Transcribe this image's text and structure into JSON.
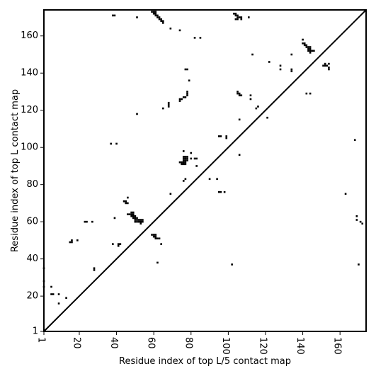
{
  "chart_data": {
    "type": "scatter",
    "xlabel": "Residue index of top L/5 contact map",
    "ylabel": "Residue index of top L contact map",
    "xlim": [
      1,
      174
    ],
    "ylim": [
      1,
      174
    ],
    "x_ticks": [
      1,
      20,
      40,
      60,
      80,
      100,
      120,
      140,
      160
    ],
    "y_ticks": [
      1,
      20,
      40,
      60,
      80,
      100,
      120,
      140,
      160
    ],
    "grid": false,
    "legend": "none",
    "diagonal": true,
    "point_color": "#000000",
    "points": [
      [
        1,
        35
      ],
      [
        1,
        28
      ],
      [
        1,
        25
      ],
      [
        5,
        25
      ],
      [
        5,
        21
      ],
      [
        6,
        21
      ],
      [
        9,
        21
      ],
      [
        9,
        16
      ],
      [
        13,
        19
      ],
      [
        15,
        49
      ],
      [
        16,
        49
      ],
      [
        16,
        50
      ],
      [
        19,
        50
      ],
      [
        23,
        60
      ],
      [
        24,
        60
      ],
      [
        27,
        60
      ],
      [
        28,
        35
      ],
      [
        28,
        34
      ],
      [
        38,
        171
      ],
      [
        39,
        171
      ],
      [
        37,
        102
      ],
      [
        40,
        102
      ],
      [
        39,
        62
      ],
      [
        38,
        48
      ],
      [
        41,
        48
      ],
      [
        42,
        48
      ],
      [
        41,
        47
      ],
      [
        44,
        71
      ],
      [
        45,
        71
      ],
      [
        45,
        70
      ],
      [
        46,
        70
      ],
      [
        46,
        73
      ],
      [
        46,
        64
      ],
      [
        47,
        64
      ],
      [
        48,
        65
      ],
      [
        48,
        64
      ],
      [
        48,
        63
      ],
      [
        49,
        65
      ],
      [
        49,
        64
      ],
      [
        49,
        63
      ],
      [
        49,
        62
      ],
      [
        50,
        63
      ],
      [
        50,
        62
      ],
      [
        50,
        61
      ],
      [
        50,
        60
      ],
      [
        51,
        62
      ],
      [
        51,
        61
      ],
      [
        51,
        60
      ],
      [
        52,
        61
      ],
      [
        52,
        60
      ],
      [
        53,
        61
      ],
      [
        53,
        60
      ],
      [
        53,
        59
      ],
      [
        54,
        61
      ],
      [
        54,
        60
      ],
      [
        51,
        170
      ],
      [
        51,
        118
      ],
      [
        59,
        173
      ],
      [
        60,
        173
      ],
      [
        61,
        173
      ],
      [
        60,
        172
      ],
      [
        61,
        172
      ],
      [
        61,
        171
      ],
      [
        62,
        171
      ],
      [
        62,
        170
      ],
      [
        63,
        170
      ],
      [
        63,
        169
      ],
      [
        64,
        169
      ],
      [
        64,
        168
      ],
      [
        65,
        168
      ],
      [
        65,
        167
      ],
      [
        65,
        121
      ],
      [
        68,
        124
      ],
      [
        68,
        123
      ],
      [
        68,
        122
      ],
      [
        69,
        164
      ],
      [
        59,
        53
      ],
      [
        60,
        53
      ],
      [
        61,
        53
      ],
      [
        60,
        52
      ],
      [
        61,
        52
      ],
      [
        61,
        51
      ],
      [
        62,
        51
      ],
      [
        63,
        51
      ],
      [
        64,
        48
      ],
      [
        62,
        38
      ],
      [
        69,
        75
      ],
      [
        74,
        163
      ],
      [
        74,
        126
      ],
      [
        74,
        125
      ],
      [
        75,
        126
      ],
      [
        76,
        127
      ],
      [
        77,
        127
      ],
      [
        78,
        128
      ],
      [
        78,
        129
      ],
      [
        78,
        130
      ],
      [
        77,
        142
      ],
      [
        78,
        142
      ],
      [
        79,
        136
      ],
      [
        74,
        92
      ],
      [
        75,
        92
      ],
      [
        75,
        91
      ],
      [
        76,
        98
      ],
      [
        76,
        95
      ],
      [
        76,
        94
      ],
      [
        76,
        93
      ],
      [
        76,
        92
      ],
      [
        76,
        91
      ],
      [
        77,
        95
      ],
      [
        77,
        94
      ],
      [
        77,
        93
      ],
      [
        77,
        92
      ],
      [
        77,
        91
      ],
      [
        78,
        95
      ],
      [
        78,
        94
      ],
      [
        78,
        93
      ],
      [
        80,
        97
      ],
      [
        80,
        94
      ],
      [
        82,
        94
      ],
      [
        83,
        94
      ],
      [
        83,
        90
      ],
      [
        76,
        82
      ],
      [
        77,
        83
      ],
      [
        82,
        159
      ],
      [
        85,
        159
      ],
      [
        90,
        83
      ],
      [
        94,
        83
      ],
      [
        95,
        106
      ],
      [
        96,
        106
      ],
      [
        95,
        76
      ],
      [
        96,
        76
      ],
      [
        98,
        76
      ],
      [
        99,
        105
      ],
      [
        99,
        106
      ],
      [
        102,
        37
      ],
      [
        103,
        172
      ],
      [
        104,
        172
      ],
      [
        104,
        171
      ],
      [
        105,
        171
      ],
      [
        105,
        170
      ],
      [
        106,
        170
      ],
      [
        107,
        170
      ],
      [
        107,
        169
      ],
      [
        104,
        169
      ],
      [
        105,
        169
      ],
      [
        105,
        130
      ],
      [
        105,
        129
      ],
      [
        106,
        129
      ],
      [
        106,
        128
      ],
      [
        107,
        128
      ],
      [
        106,
        115
      ],
      [
        106,
        96
      ],
      [
        111,
        170
      ],
      [
        112,
        128
      ],
      [
        112,
        126
      ],
      [
        113,
        150
      ],
      [
        115,
        121
      ],
      [
        116,
        122
      ],
      [
        121,
        116
      ],
      [
        122,
        146
      ],
      [
        128,
        144
      ],
      [
        128,
        142
      ],
      [
        134,
        150
      ],
      [
        134,
        142
      ],
      [
        134,
        141
      ],
      [
        140,
        158
      ],
      [
        140,
        156
      ],
      [
        141,
        156
      ],
      [
        141,
        155
      ],
      [
        142,
        155
      ],
      [
        142,
        154
      ],
      [
        143,
        154
      ],
      [
        143,
        153
      ],
      [
        143,
        152
      ],
      [
        144,
        154
      ],
      [
        144,
        153
      ],
      [
        144,
        152
      ],
      [
        144,
        151
      ],
      [
        145,
        152
      ],
      [
        146,
        152
      ],
      [
        142,
        129
      ],
      [
        144,
        129
      ],
      [
        151,
        144
      ],
      [
        152,
        144
      ],
      [
        152,
        145
      ],
      [
        153,
        144
      ],
      [
        154,
        145
      ],
      [
        154,
        143
      ],
      [
        154,
        142
      ],
      [
        163,
        75
      ],
      [
        168,
        104
      ],
      [
        169,
        63
      ],
      [
        169,
        61
      ],
      [
        170,
        37
      ],
      [
        171,
        60
      ],
      [
        172,
        59
      ]
    ]
  }
}
